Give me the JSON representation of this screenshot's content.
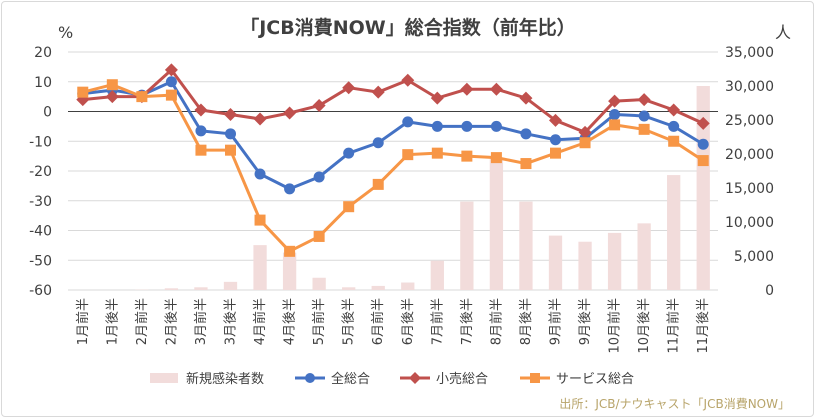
{
  "chart_data": {
    "type": "bar+line",
    "title": "「JCB消費NOW」総合指数（前年比）",
    "left_axis": {
      "unit": "%",
      "ylim": [
        -60,
        20
      ],
      "ticks": [
        20,
        10,
        0,
        -10,
        -20,
        -30,
        -40,
        -50,
        -60
      ]
    },
    "right_axis": {
      "unit": "人",
      "ylim": [
        0,
        35000
      ],
      "ticks": [
        0,
        5000,
        10000,
        15000,
        20000,
        25000,
        30000,
        35000
      ],
      "tick_labels": [
        "0",
        "5,000",
        "10,000",
        "15,000",
        "20,000",
        "25,000",
        "30,000",
        "35,000"
      ]
    },
    "categories": [
      "1月前半",
      "1月後半",
      "2月前半",
      "2月後半",
      "3月前半",
      "3月後半",
      "4月前半",
      "4月後半",
      "5月前半",
      "5月後半",
      "6月前半",
      "6月後半",
      "7月前半",
      "7月後半",
      "8月前半",
      "8月後半",
      "9月前半",
      "9月後半",
      "10月前半",
      "10月後半",
      "11月前半",
      "11月後半"
    ],
    "bar_series": {
      "name": "新規感染者数",
      "axis": "right",
      "color": "#f2dcdb",
      "values": [
        0,
        0,
        50,
        250,
        400,
        1200,
        6600,
        5500,
        1800,
        400,
        600,
        1100,
        4300,
        13000,
        19500,
        13000,
        8000,
        7100,
        8400,
        9800,
        16900,
        30000
      ]
    },
    "line_series": [
      {
        "name": "全総合",
        "axis": "left",
        "color": "#4472c4",
        "marker": "circle",
        "values": [
          6.0,
          7.2,
          5.5,
          10.0,
          -6.5,
          -7.5,
          -21.0,
          -26.0,
          -22.0,
          -14.0,
          -10.5,
          -3.5,
          -5.0,
          -5.0,
          -5.0,
          -7.5,
          -9.5,
          -9.0,
          -1.0,
          -1.5,
          -5.0,
          -11.0
        ]
      },
      {
        "name": "小売総合",
        "axis": "left",
        "color": "#c0504d",
        "marker": "diamond",
        "values": [
          4.0,
          5.0,
          5.0,
          14.0,
          0.5,
          -1.0,
          -2.5,
          -0.5,
          2.0,
          8.0,
          6.5,
          10.5,
          4.5,
          7.5,
          7.5,
          4.5,
          -3.0,
          -7.0,
          3.5,
          4.0,
          0.5,
          -4.0
        ]
      },
      {
        "name": "サービス総合",
        "axis": "left",
        "color": "#f79646",
        "marker": "square",
        "values": [
          6.5,
          9.0,
          5.0,
          5.5,
          -13.0,
          -13.0,
          -36.5,
          -47.0,
          -42.0,
          -32.0,
          -24.5,
          -14.5,
          -14.0,
          -15.0,
          -15.5,
          -17.5,
          -14.0,
          -10.5,
          -4.5,
          -6.0,
          -10.0,
          -16.5
        ]
      }
    ],
    "gridlines": "horizontal",
    "legend_position": "bottom"
  },
  "source_note": "出所：JCB/ナウキャスト「JCB消費NOW」"
}
